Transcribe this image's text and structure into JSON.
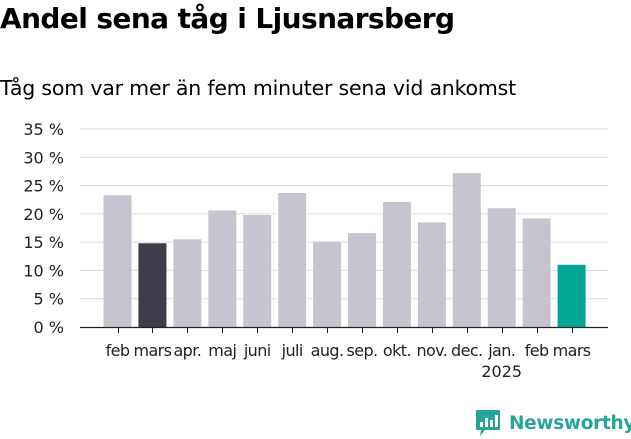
{
  "title": "Andel sena tåg i Ljusnarsberg",
  "subtitle": "Tåg som var mer än fem minuter sena vid ankomst",
  "brand": {
    "name": "Newsworthy",
    "icon": "newsworthy-logo-icon"
  },
  "colors": {
    "bar_default": "#c6c5cf",
    "bar_highlight_dark": "#3f3d4a",
    "bar_highlight_latest": "#00a596",
    "grid": "#dcdcdc",
    "brand": "#26a59a"
  },
  "chart_data": {
    "type": "bar",
    "categories": [
      "feb",
      "mars",
      "apr.",
      "maj",
      "juni",
      "juli",
      "aug.",
      "sep.",
      "okt.",
      "nov.",
      "dec.",
      "jan.",
      "feb",
      "mars"
    ],
    "year_labels": [
      {
        "index": 11,
        "label": "2025"
      }
    ],
    "values": [
      23.3,
      14.8,
      15.5,
      20.6,
      19.8,
      23.7,
      15.1,
      16.6,
      22.1,
      18.5,
      27.2,
      21.0,
      19.2,
      11.0
    ],
    "highlight": {
      "1": "bar_highlight_dark",
      "13": "bar_highlight_latest"
    },
    "yticks": [
      0,
      5,
      10,
      15,
      20,
      25,
      30,
      35
    ],
    "ytick_labels": [
      "0 %",
      "5 %",
      "10 %",
      "15 %",
      "20 %",
      "25 %",
      "30 %",
      "35 %"
    ],
    "ylim": [
      0,
      36
    ],
    "grid": true,
    "xlabel": "",
    "ylabel": ""
  }
}
